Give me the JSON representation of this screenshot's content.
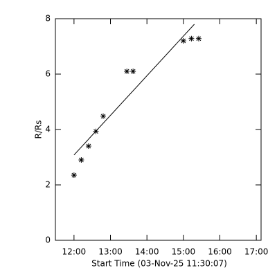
{
  "chart_data": {
    "type": "scatter",
    "xlabel": "Start Time (03-Nov-25 11:30:07)",
    "ylabel": "R/Rs",
    "xlim": [
      11.49,
      17.13
    ],
    "ylim": [
      0,
      8
    ],
    "xticks": [
      {
        "value": 12,
        "label": "12:00"
      },
      {
        "value": 13,
        "label": "13:00"
      },
      {
        "value": 14,
        "label": "14:00"
      },
      {
        "value": 15,
        "label": "15:00"
      },
      {
        "value": 16,
        "label": "16:00"
      },
      {
        "value": 17,
        "label": "17:00"
      }
    ],
    "yticks": [
      0,
      2,
      4,
      6,
      8
    ],
    "color": "#000000",
    "points": {
      "x": [
        12.0,
        12.2,
        12.4,
        12.6,
        12.8,
        13.45,
        13.62,
        15.0,
        15.22,
        15.42
      ],
      "y": [
        2.35,
        2.9,
        3.4,
        3.93,
        4.48,
        6.1,
        6.1,
        7.2,
        7.28,
        7.28
      ]
    },
    "fit": {
      "x": [
        12.0,
        15.3
      ],
      "y": [
        3.08,
        7.8
      ]
    }
  }
}
